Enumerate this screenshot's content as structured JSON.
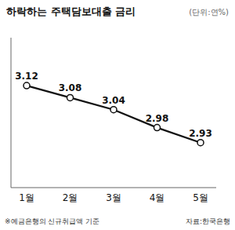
{
  "chart_data": {
    "type": "line",
    "title": "하락하는 주택담보대출 금리",
    "subtitle": "(단위:연%)",
    "categories": [
      "1월",
      "2월",
      "3월",
      "4월",
      "5월"
    ],
    "values": [
      3.12,
      3.08,
      3.04,
      2.98,
      2.93
    ],
    "color": "#111111",
    "marker": "circle",
    "ylim": [
      2.78,
      3.28
    ],
    "data_labels": true,
    "tick_labels": "x",
    "grid": false,
    "annotations": [
      "※예금은행의 신규취급액 기준",
      "자료:한국은행"
    ]
  }
}
